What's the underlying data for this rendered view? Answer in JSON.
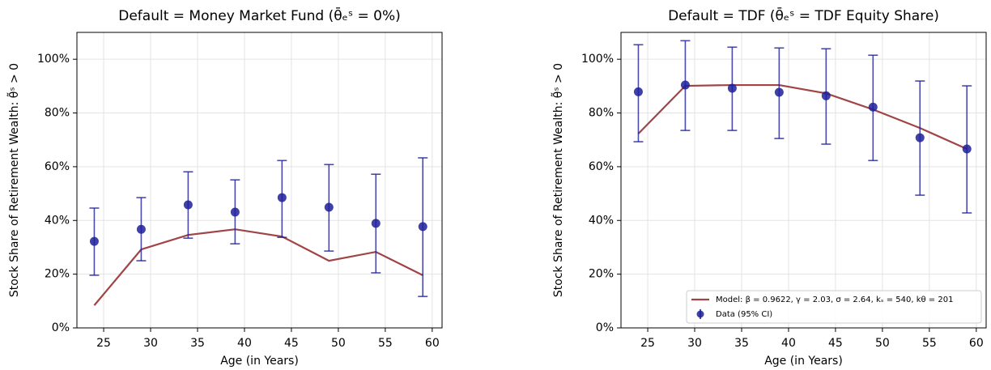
{
  "chart_data": [
    {
      "type": "line",
      "title": "Default = Money Market Fund (θ̄ₑˢ = 0%)",
      "xlabel": "Age (in Years)",
      "ylabel": "Stock Share of Retirement Wealth: θ̃ˢ > 0",
      "x": [
        24,
        29,
        34,
        39,
        44,
        49,
        54,
        59
      ],
      "series": [
        {
          "color": "#a04446",
          "values": [
            8.4,
            29.2,
            34.6,
            36.7,
            34.0,
            25.0,
            28.3,
            19.6
          ]
        },
        {
          "color": "#1f1f9a",
          "values": [
            32.2,
            36.7,
            45.8,
            43.1,
            48.5,
            44.9,
            38.9,
            37.7
          ],
          "ci_lower": [
            19.6,
            25.0,
            33.4,
            31.3,
            33.7,
            28.6,
            20.5,
            11.7
          ],
          "ci_upper": [
            44.6,
            48.5,
            58.1,
            55.1,
            62.3,
            60.8,
            57.2,
            63.3
          ]
        }
      ],
      "xlim": [
        22.15,
        61.05
      ],
      "ylim": [
        0,
        110
      ],
      "xticks": [
        25,
        30,
        35,
        40,
        45,
        50,
        55,
        60
      ],
      "yticks": [
        {
          "value": 0,
          "label": "0%"
        },
        {
          "value": 20,
          "label": "20%"
        },
        {
          "value": 40,
          "label": "40%"
        },
        {
          "value": 60,
          "label": "60%"
        },
        {
          "value": 80,
          "label": "80%"
        },
        {
          "value": 100,
          "label": "100%"
        }
      ],
      "grid": true
    },
    {
      "type": "line",
      "title": "Default = TDF (θ̄ₑˢ = TDF Equity Share)",
      "xlabel": "Age (in Years)",
      "ylabel": "Stock Share of Retirement Wealth: θ̃ˢ > 0",
      "x": [
        24,
        29,
        34,
        39,
        44,
        49,
        54,
        59
      ],
      "series": [
        {
          "name": "Model: β = 0.9622, γ = 2.03, σ = 2.64, kₛ = 540, kθ = 201",
          "color": "#a04446",
          "values": [
            72.3,
            90.1,
            90.4,
            90.4,
            87.3,
            81.3,
            74.4,
            66.6
          ]
        },
        {
          "name": "Data (95% CI)",
          "color": "#1f1f9a",
          "values": [
            87.9,
            90.4,
            89.2,
            87.7,
            86.4,
            82.2,
            70.8,
            66.6
          ],
          "ci_lower": [
            69.3,
            73.5,
            73.5,
            70.5,
            68.4,
            62.3,
            49.4,
            42.8
          ],
          "ci_upper": [
            105.4,
            106.9,
            104.5,
            104.2,
            103.9,
            101.5,
            91.9,
            90.1
          ]
        }
      ],
      "xlim": [
        22.15,
        61.05
      ],
      "ylim": [
        0,
        110
      ],
      "xticks": [
        25,
        30,
        35,
        40,
        45,
        50,
        55,
        60
      ],
      "yticks": [
        {
          "value": 0,
          "label": "0%"
        },
        {
          "value": 20,
          "label": "20%"
        },
        {
          "value": 40,
          "label": "40%"
        },
        {
          "value": 60,
          "label": "60%"
        },
        {
          "value": 80,
          "label": "80%"
        },
        {
          "value": 100,
          "label": "100%"
        }
      ],
      "grid": true,
      "legend": "lower right"
    }
  ]
}
